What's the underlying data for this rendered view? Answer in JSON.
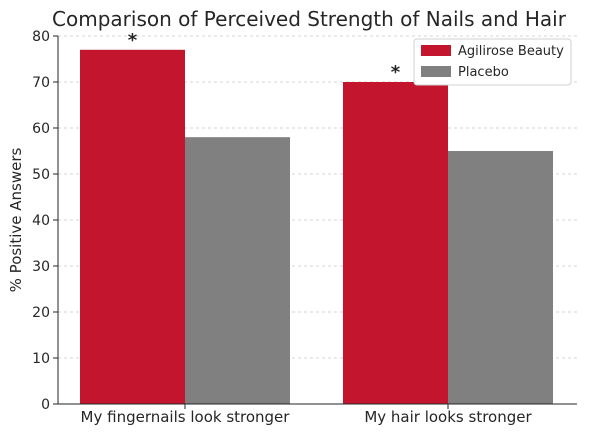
{
  "chart_data": {
    "type": "bar",
    "title": "Comparison of Perceived Strength of Nails and Hair",
    "ylabel": "% Positive Answers",
    "xlabel": "",
    "categories": [
      "My fingernails look stronger",
      "My hair looks stronger"
    ],
    "series": [
      {
        "name": "Agilirose Beauty",
        "values": [
          77,
          70
        ],
        "color": "#c3162e"
      },
      {
        "name": "Placebo",
        "values": [
          58,
          55
        ],
        "color": "#808080"
      }
    ],
    "ylim": [
      0,
      80
    ],
    "yticks": [
      0,
      10,
      20,
      30,
      40,
      50,
      60,
      70,
      80
    ],
    "significance_marks": [
      {
        "category_index": 0,
        "series_index": 0,
        "label": "*"
      },
      {
        "category_index": 1,
        "series_index": 0,
        "label": "*"
      }
    ],
    "grid": true,
    "legend_position": "top-right"
  }
}
